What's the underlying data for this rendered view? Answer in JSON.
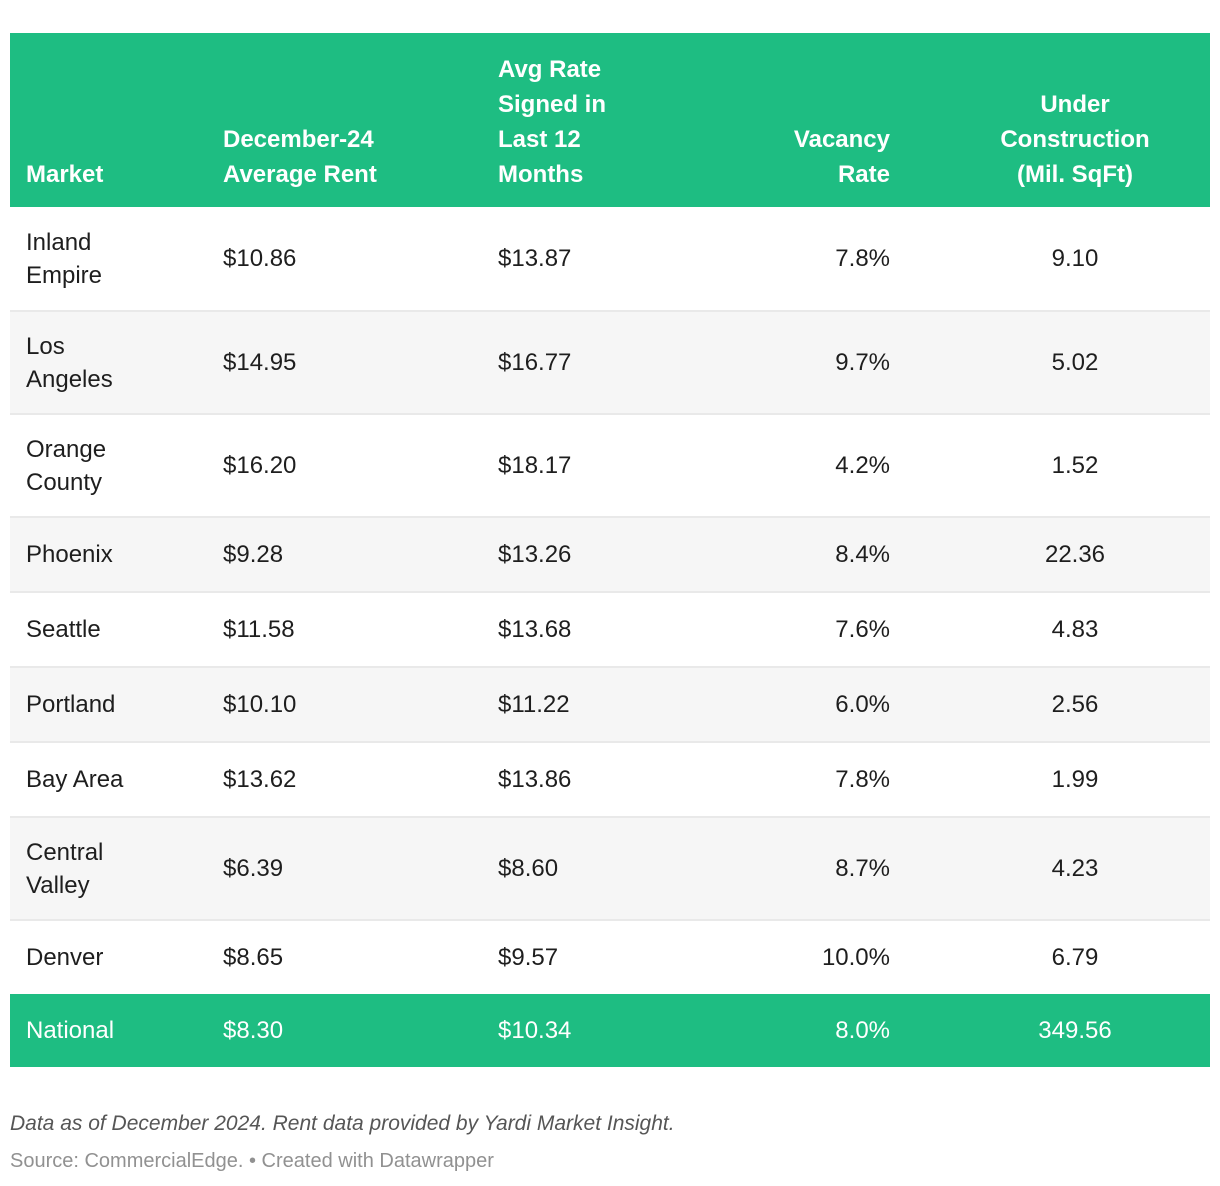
{
  "colors": {
    "header_green": "#1ebd82",
    "total_row_green": "#1ebd82",
    "alt_row_gray": "#f6f6f6",
    "divider_gray": "#e9e9e9",
    "body_text": "#1e1e1e",
    "header_text": "#ffffff",
    "footnote_text": "#565656",
    "source_text": "#919191"
  },
  "table": {
    "columns": [
      {
        "label": "Market"
      },
      {
        "label": "December-24\nAverage Rent"
      },
      {
        "label": "Avg Rate\nSigned in\nLast 12\nMonths"
      },
      {
        "label": "Vacancy\nRate"
      },
      {
        "label": "Under\nConstruction\n(Mil. SqFt)"
      }
    ],
    "rows": [
      {
        "market": "Inland\nEmpire",
        "rent": "$10.86",
        "rate12": "$13.87",
        "vacancy": "7.8%",
        "construction": "9.10"
      },
      {
        "market": "Los\nAngeles",
        "rent": "$14.95",
        "rate12": "$16.77",
        "vacancy": "9.7%",
        "construction": "5.02"
      },
      {
        "market": "Orange\nCounty",
        "rent": "$16.20",
        "rate12": "$18.17",
        "vacancy": "4.2%",
        "construction": "1.52"
      },
      {
        "market": "Phoenix",
        "rent": "$9.28",
        "rate12": "$13.26",
        "vacancy": "8.4%",
        "construction": "22.36"
      },
      {
        "market": "Seattle",
        "rent": "$11.58",
        "rate12": "$13.68",
        "vacancy": "7.6%",
        "construction": "4.83"
      },
      {
        "market": "Portland",
        "rent": "$10.10",
        "rate12": "$11.22",
        "vacancy": "6.0%",
        "construction": "2.56"
      },
      {
        "market": "Bay Area",
        "rent": "$13.62",
        "rate12": "$13.86",
        "vacancy": "7.8%",
        "construction": "1.99"
      },
      {
        "market": "Central\nValley",
        "rent": "$6.39",
        "rate12": "$8.60",
        "vacancy": "8.7%",
        "construction": "4.23"
      },
      {
        "market": "Denver",
        "rent": "$8.65",
        "rate12": "$9.57",
        "vacancy": "10.0%",
        "construction": "6.79"
      },
      {
        "market": "National",
        "rent": "$8.30",
        "rate12": "$10.34",
        "vacancy": "8.0%",
        "construction": "349.56"
      }
    ]
  },
  "footer": {
    "note": "Data as of December 2024. Rent data provided by Yardi Market Insight.",
    "source": "Source: CommercialEdge. • Created with Datawrapper"
  },
  "chart_data": {
    "type": "table",
    "title": "",
    "columns": [
      "Market",
      "December-24 Average Rent ($)",
      "Avg Rate Signed in Last 12 Months ($)",
      "Vacancy Rate (%)",
      "Under Construction (Mil. SqFt)"
    ],
    "rows": [
      {
        "market": "Inland Empire",
        "december_24_average_rent": 10.86,
        "avg_rate_signed_last_12_months": 13.87,
        "vacancy_rate_pct": 7.8,
        "under_construction_mil_sqft": 9.1
      },
      {
        "market": "Los Angeles",
        "december_24_average_rent": 14.95,
        "avg_rate_signed_last_12_months": 16.77,
        "vacancy_rate_pct": 9.7,
        "under_construction_mil_sqft": 5.02
      },
      {
        "market": "Orange County",
        "december_24_average_rent": 16.2,
        "avg_rate_signed_last_12_months": 18.17,
        "vacancy_rate_pct": 4.2,
        "under_construction_mil_sqft": 1.52
      },
      {
        "market": "Phoenix",
        "december_24_average_rent": 9.28,
        "avg_rate_signed_last_12_months": 13.26,
        "vacancy_rate_pct": 8.4,
        "under_construction_mil_sqft": 22.36
      },
      {
        "market": "Seattle",
        "december_24_average_rent": 11.58,
        "avg_rate_signed_last_12_months": 13.68,
        "vacancy_rate_pct": 7.6,
        "under_construction_mil_sqft": 4.83
      },
      {
        "market": "Portland",
        "december_24_average_rent": 10.1,
        "avg_rate_signed_last_12_months": 11.22,
        "vacancy_rate_pct": 6.0,
        "under_construction_mil_sqft": 2.56
      },
      {
        "market": "Bay Area",
        "december_24_average_rent": 13.62,
        "avg_rate_signed_last_12_months": 13.86,
        "vacancy_rate_pct": 7.8,
        "under_construction_mil_sqft": 1.99
      },
      {
        "market": "Central Valley",
        "december_24_average_rent": 6.39,
        "avg_rate_signed_last_12_months": 8.6,
        "vacancy_rate_pct": 8.7,
        "under_construction_mil_sqft": 4.23
      },
      {
        "market": "Denver",
        "december_24_average_rent": 8.65,
        "avg_rate_signed_last_12_months": 9.57,
        "vacancy_rate_pct": 10.0,
        "under_construction_mil_sqft": 6.79
      },
      {
        "market": "National",
        "december_24_average_rent": 8.3,
        "avg_rate_signed_last_12_months": 10.34,
        "vacancy_rate_pct": 8.0,
        "under_construction_mil_sqft": 349.56
      }
    ],
    "notes": "Data as of December 2024. Rent data provided by Yardi Market Insight.",
    "source": "Source: CommercialEdge. • Created with Datawrapper"
  }
}
